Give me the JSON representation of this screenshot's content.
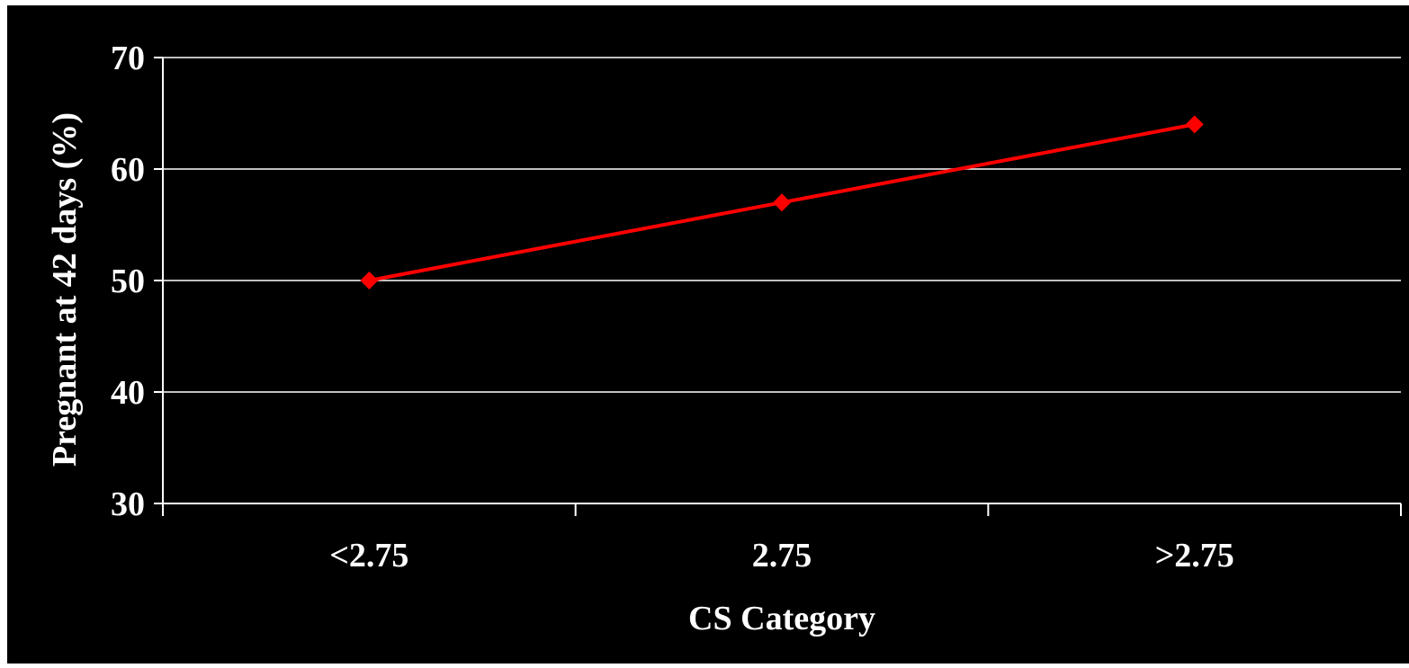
{
  "chart_data": {
    "type": "line",
    "categories": [
      "<2.75",
      "2.75",
      ">2.75"
    ],
    "series": [
      {
        "values": [
          50,
          57,
          64
        ]
      }
    ],
    "xlabel": "CS Category",
    "ylabel": "Pregnant at 42 days (%)",
    "ylim": [
      30,
      70
    ],
    "yticks": [
      30,
      40,
      50,
      60,
      70
    ],
    "grid": "horizontal",
    "background": "#000000",
    "line_color": "#ff0000",
    "marker": "diamond",
    "text_color": "#ffffff"
  }
}
